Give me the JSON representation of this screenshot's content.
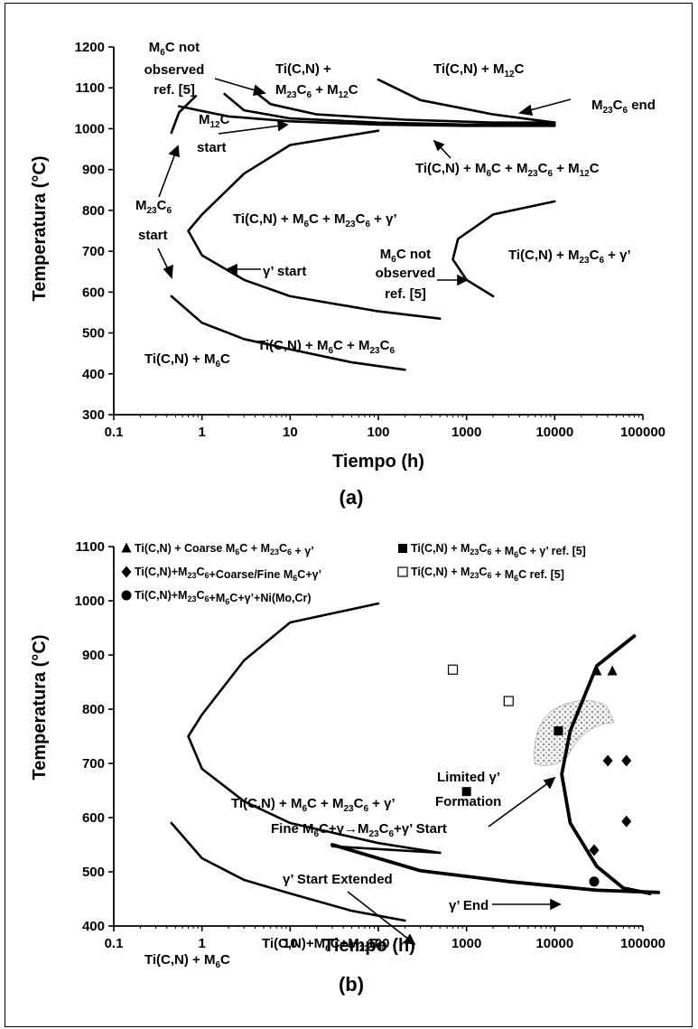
{
  "chart_data": [
    {
      "id": "a",
      "type": "line",
      "caption": "(a)",
      "xlabel": "Tiempo (h)",
      "ylabel": "Temperatura (°C)",
      "xscale": "log",
      "xlim": [
        0.1,
        100000
      ],
      "ylim": [
        300,
        1200
      ],
      "xticks": [
        "0.1",
        "1",
        "10",
        "100",
        "1000",
        "10000",
        "100000"
      ],
      "yticks": [
        "300",
        "400",
        "500",
        "600",
        "700",
        "800",
        "900",
        "1000",
        "1100",
        "1200"
      ],
      "grid": false,
      "series": [
        {
          "points": [
            [
              0.45,
              990
            ],
            [
              0.55,
              1040
            ],
            [
              0.85,
              1080
            ]
          ]
        },
        {
          "points": [
            [
              0.55,
              1055
            ],
            [
              2,
              1030
            ],
            [
              10,
              1018
            ],
            [
              100,
              1010
            ],
            [
              1000,
              1007
            ],
            [
              10000,
              1007
            ]
          ]
        },
        {
          "points": [
            [
              1.8,
              1085
            ],
            [
              3,
              1045
            ],
            [
              10,
              1025
            ],
            [
              100,
              1015
            ],
            [
              1000,
              1010
            ],
            [
              10000,
              1010
            ]
          ]
        },
        {
          "points": [
            [
              4,
              1090
            ],
            [
              6,
              1060
            ],
            [
              20,
              1035
            ],
            [
              200,
              1022
            ],
            [
              2000,
              1015
            ],
            [
              10000,
              1015
            ]
          ]
        },
        {
          "points": [
            [
              100,
              1120
            ],
            [
              300,
              1070
            ],
            [
              2000,
              1035
            ],
            [
              10000,
              1015
            ]
          ]
        },
        {
          "points": [
            [
              100,
              995
            ],
            [
              10,
              960
            ],
            [
              3,
              890
            ],
            [
              1,
              790
            ],
            [
              0.7,
              750
            ],
            [
              1,
              690
            ],
            [
              3,
              630
            ],
            [
              10,
              590
            ],
            [
              100,
              553
            ],
            [
              500,
              535
            ]
          ]
        },
        {
          "points": [
            [
              10000,
              822
            ],
            [
              2000,
              790
            ],
            [
              800,
              730
            ],
            [
              700,
              680
            ],
            [
              1000,
              630
            ],
            [
              2000,
              590
            ]
          ]
        },
        {
          "points": [
            [
              0.45,
              590
            ],
            [
              1,
              525
            ],
            [
              3,
              485
            ],
            [
              10,
              460
            ],
            [
              50,
              428
            ],
            [
              200,
              410
            ]
          ]
        }
      ],
      "annotations": [
        "M6C not observed ref. [5]",
        "Ti(C,N) + M23C6 + M12C",
        "Ti(C,N) + M12C",
        "M23C6 end",
        "M12C start",
        "Ti(C,N) + M6C + M23C6 + M12C",
        "M23C6 start",
        "Ti(C,N) + M6C + M23C6 + γ’",
        "γ’ start",
        "M6C not observed ref. [5]",
        "Ti(C,N) + M23C6 + γ’",
        "Ti(C,N) + M6C + M23C6",
        "Ti(C,N) + M6C"
      ]
    },
    {
      "id": "b",
      "type": "scatter",
      "caption": "(b)",
      "xlabel": "Tiempo (h)",
      "ylabel": "Temperatura (°C)",
      "xscale": "log",
      "xlim": [
        0.1,
        100000
      ],
      "ylim": [
        400,
        1100
      ],
      "xticks": [
        "0.1",
        "1",
        "10",
        "100",
        "1000",
        "10000",
        "100000"
      ],
      "yticks": [
        "400",
        "500",
        "600",
        "700",
        "800",
        "900",
        "1000",
        "1100"
      ],
      "grid": false,
      "legend": "top",
      "series": [
        {
          "name": "Ti(C,N) + Coarse M6C + M23C6 + γ’",
          "marker": "triangle",
          "points": [
            [
              30000,
              870
            ],
            [
              45000,
              870
            ]
          ]
        },
        {
          "name": "Ti(C,N) + M23C6 + M6C + γ’ ref. [5]",
          "marker": "square",
          "points": [
            [
              11000,
              760
            ],
            [
              1000,
              648
            ]
          ]
        },
        {
          "name": "Ti(C,N)+M23C6+Coarse/Fine M6C+γ’",
          "marker": "diamond",
          "points": [
            [
              40000,
              705
            ],
            [
              65000,
              705
            ],
            [
              65000,
              593
            ],
            [
              28000,
              540
            ]
          ]
        },
        {
          "name": "Ti(C,N) + M23C6 + M6C ref. [5]",
          "marker": "open-square",
          "points": [
            [
              700,
              873
            ],
            [
              3000,
              815
            ]
          ]
        },
        {
          "name": "Ti(C,N)+M23C6+M6C+γ’+Ni(Mo,Cr)",
          "marker": "circle",
          "points": [
            [
              28000,
              482
            ]
          ]
        }
      ],
      "curves": [
        {
          "points": [
            [
              100,
              995
            ],
            [
              10,
              960
            ],
            [
              3,
              890
            ],
            [
              1,
              790
            ],
            [
              0.7,
              750
            ],
            [
              1,
              690
            ],
            [
              3,
              630
            ],
            [
              10,
              590
            ],
            [
              100,
              553
            ],
            [
              500,
              535
            ]
          ]
        },
        {
          "points": [
            [
              0.45,
              590
            ],
            [
              1,
              525
            ],
            [
              3,
              485
            ],
            [
              10,
              460
            ],
            [
              50,
              428
            ],
            [
              200,
              410
            ]
          ]
        },
        {
          "points": [
            [
              30,
              547
            ],
            [
              500,
              535
            ]
          ]
        },
        {
          "points": [
            [
              30,
              550
            ],
            [
              300,
              502
            ],
            [
              3000,
              482
            ],
            [
              30000,
              466
            ],
            [
              150000,
              462
            ]
          ]
        },
        {
          "points": [
            [
              80000,
              935
            ],
            [
              30000,
              880
            ],
            [
              15000,
              760
            ],
            [
              12000,
              680
            ],
            [
              15000,
              590
            ],
            [
              30000,
              510
            ],
            [
              60000,
              470
            ],
            [
              120000,
              460
            ]
          ]
        }
      ],
      "annotations": [
        "Limited γ’ Formation",
        "Ti(C,N) + M6C + M23C6 + γ’",
        "Fine M6C+γ→M23C6+γ’ Start",
        "γ’ Start Extended",
        "γ’ End",
        "Ti(C,N)+M6C+M23C6",
        "Ti(C,N) + M6C"
      ]
    }
  ]
}
